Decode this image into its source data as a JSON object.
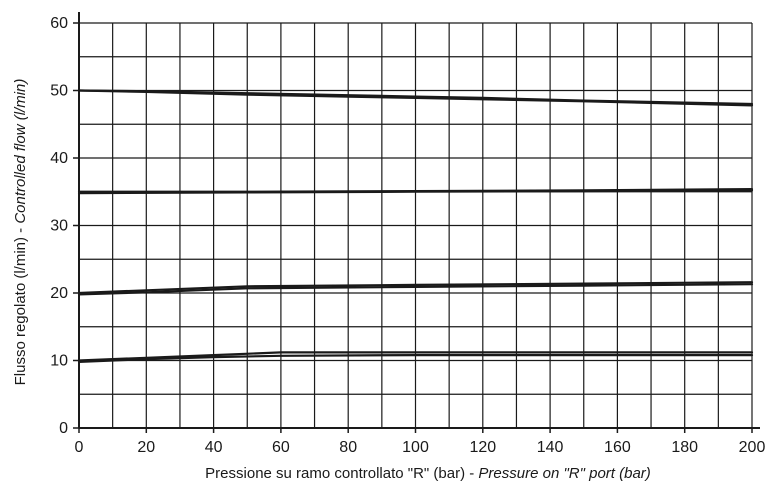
{
  "chart_data": {
    "type": "line",
    "title": "",
    "xlabel": "Pressione su ramo controllato \"R\" (bar) - ",
    "xlabel_italic": "Pressure on \"R\" port (bar)",
    "ylabel": "Flusso regolato (l/min) - ",
    "ylabel_italic": "Controlled flow (l/min)",
    "xlim": [
      0,
      200
    ],
    "ylim": [
      0,
      60
    ],
    "x_ticks": [
      0,
      20,
      40,
      60,
      80,
      100,
      120,
      140,
      160,
      180,
      200
    ],
    "y_ticks": [
      0,
      10,
      20,
      30,
      40,
      50,
      60
    ],
    "grid": true,
    "line_color": "#1a1a1a",
    "series": [
      {
        "x": [
          0,
          20,
          50,
          80,
          100,
          120,
          150,
          200
        ],
        "values": [
          50,
          49.9,
          49.6,
          49.3,
          49.1,
          48.9,
          48.5,
          48.0
        ]
      },
      {
        "x": [
          0,
          20,
          50,
          80,
          100,
          120,
          150,
          200
        ],
        "values": [
          50,
          49.8,
          49.4,
          49.1,
          48.9,
          48.7,
          48.4,
          47.8
        ]
      },
      {
        "x": [
          0,
          50,
          100,
          150,
          200
        ],
        "values": [
          35,
          35,
          35.1,
          35.2,
          35.4
        ]
      },
      {
        "x": [
          0,
          50,
          100,
          150,
          200
        ],
        "values": [
          34.8,
          34.9,
          35,
          35.1,
          35.2
        ]
      },
      {
        "x": [
          0,
          20,
          50,
          100,
          150,
          200
        ],
        "values": [
          20,
          20.4,
          21.0,
          21.2,
          21.4,
          21.6
        ]
      },
      {
        "x": [
          0,
          20,
          50,
          100,
          150,
          200
        ],
        "values": [
          19.8,
          20.1,
          20.7,
          20.9,
          21.1,
          21.3
        ]
      },
      {
        "x": [
          0,
          20,
          40,
          60,
          100,
          150,
          200
        ],
        "values": [
          10,
          10.4,
          10.8,
          11.2,
          11.2,
          11.2,
          11.2
        ]
      },
      {
        "x": [
          0,
          20,
          40,
          60,
          100,
          150,
          200
        ],
        "values": [
          9.8,
          10.2,
          10.5,
          10.7,
          10.8,
          10.8,
          10.8
        ]
      }
    ]
  }
}
